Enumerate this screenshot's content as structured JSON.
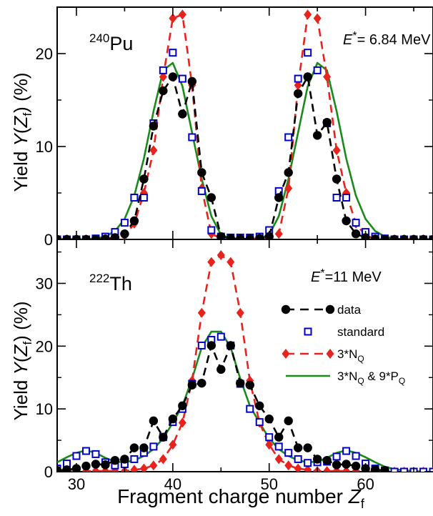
{
  "chart_data": [
    {
      "type": "line",
      "panel_label": {
        "mass": "240",
        "element": "Pu"
      },
      "energy": {
        "symbol": "E",
        "star": "*",
        "value_text": "= 6.84 MeV"
      },
      "ylabel": {
        "prefix": "Yield ",
        "sym": "Y",
        "paren_open": "(",
        "zsym": "Z",
        "zsub": "f",
        "paren_close": ") (%)"
      },
      "xlim": [
        28,
        67
      ],
      "ylim": [
        0,
        25
      ],
      "yticks": [
        0,
        10,
        20
      ],
      "series": [
        {
          "key": "data",
          "color": "#000000",
          "x": [
            28,
            29,
            30,
            31,
            32,
            33,
            34,
            35,
            36,
            37,
            38,
            39,
            40,
            41,
            42,
            43,
            44,
            45,
            46,
            47,
            48,
            49,
            50,
            51,
            52,
            53,
            54,
            55,
            56,
            57,
            58,
            59,
            60,
            61,
            62,
            63,
            64,
            65,
            66,
            67
          ],
          "y": [
            0,
            0,
            0,
            0,
            0,
            0.05,
            0.2,
            0.6,
            2.0,
            6.5,
            12.2,
            16.0,
            17.5,
            13.5,
            17.0,
            7.2,
            4.5,
            0.3,
            0.1,
            0.05,
            0.05,
            0.1,
            0.3,
            4.5,
            7.2,
            15.7,
            17.5,
            11.2,
            12.6,
            6.5,
            2.0,
            0.6,
            0.2,
            0.05,
            0,
            0,
            0,
            0,
            0,
            0
          ]
        },
        {
          "key": "standard",
          "color": "#0000cc",
          "x": [
            28,
            29,
            30,
            31,
            32,
            33,
            34,
            35,
            36,
            37,
            38,
            39,
            40,
            41,
            42,
            43,
            44,
            45,
            46,
            47,
            48,
            49,
            50,
            51,
            52,
            53,
            54,
            55,
            56,
            57,
            58,
            59,
            60,
            61,
            62,
            63,
            64,
            65,
            66,
            67
          ],
          "y": [
            0,
            0,
            0,
            0,
            0.1,
            0.3,
            0.8,
            1.8,
            4.5,
            4.5,
            12.5,
            18.2,
            20.1,
            17.3,
            11.0,
            5.2,
            1.0,
            0.3,
            0.2,
            0.2,
            0.2,
            0.3,
            1.0,
            5.2,
            11.0,
            17.3,
            20.1,
            18.2,
            12.5,
            4.5,
            4.5,
            1.8,
            0.8,
            0.3,
            0.1,
            0,
            0,
            0,
            0,
            0
          ]
        },
        {
          "key": "3*N_Q",
          "color": "#e8231e",
          "x": [
            28,
            29,
            30,
            31,
            32,
            33,
            34,
            35,
            36,
            37,
            38,
            39,
            40,
            41,
            42,
            43,
            44,
            45,
            46,
            47,
            48,
            49,
            50,
            51,
            52,
            53,
            54,
            55,
            56,
            57,
            58,
            59,
            60,
            61,
            62,
            63,
            64,
            65,
            66,
            67
          ],
          "y": [
            0,
            0,
            0,
            0,
            0,
            0,
            0.1,
            0.4,
            1.7,
            5.0,
            9.6,
            17.5,
            23.8,
            24.2,
            16.6,
            5.5,
            0.6,
            0.1,
            0,
            0,
            0,
            0,
            0.1,
            0.6,
            5.5,
            16.6,
            24.2,
            23.8,
            17.5,
            9.6,
            5.0,
            1.7,
            0.4,
            0.1,
            0,
            0,
            0,
            0,
            0,
            0
          ]
        },
        {
          "key": "3*N_Q & 9*P_Q",
          "color": "#1a8a1a",
          "x": [
            28,
            29,
            30,
            31,
            32,
            33,
            34,
            35,
            36,
            37,
            38,
            39,
            40,
            41,
            42,
            43,
            44,
            45,
            46,
            47,
            48,
            49,
            50,
            51,
            52,
            53,
            54,
            55,
            56,
            57,
            58,
            59,
            60,
            61,
            62,
            63,
            64,
            65,
            66,
            67
          ],
          "y": [
            0,
            0,
            0,
            0,
            0.1,
            0.3,
            0.9,
            2.2,
            4.7,
            8.7,
            13.8,
            18.2,
            19.0,
            16.5,
            11.5,
            6.5,
            2.5,
            0.5,
            0.1,
            0.05,
            0.05,
            0.1,
            0.5,
            2.5,
            6.5,
            11.5,
            16.5,
            19.0,
            18.2,
            13.8,
            8.7,
            4.7,
            2.2,
            0.9,
            0.3,
            0.1,
            0,
            0,
            0,
            0
          ]
        }
      ]
    },
    {
      "type": "line",
      "panel_label": {
        "mass": "222",
        "element": "Th"
      },
      "energy": {
        "symbol": "E",
        "star": "*",
        "value_text": "=11 MeV"
      },
      "ylabel": {
        "prefix": "Yield ",
        "sym": "Y",
        "paren_open": "(",
        "zsym": "Z",
        "zsub": "f",
        "paren_close": ") (%)"
      },
      "xlabel": {
        "text": "Fragment charge number ",
        "sym": "Z",
        "sub": "f"
      },
      "xlim": [
        28,
        67
      ],
      "ylim": [
        0,
        37
      ],
      "xticks": [
        30,
        40,
        50,
        60
      ],
      "yticks": [
        0,
        10,
        20,
        30
      ],
      "legend": {
        "position": "right",
        "entries": [
          {
            "key": "data",
            "label": "data",
            "sub": "",
            "tail": ""
          },
          {
            "key": "standard",
            "label": "standard",
            "sub": "",
            "tail": ""
          },
          {
            "key": "3*N_Q",
            "label": "3*N",
            "sub": "Q",
            "tail": ""
          },
          {
            "key": "3*N_Q & 9*P_Q",
            "label": "3*N",
            "sub": "Q",
            "tail": " & 9*P",
            "sub2": "Q"
          }
        ]
      },
      "series": [
        {
          "key": "data",
          "color": "#000000",
          "x": [
            28,
            29,
            30,
            31,
            32,
            33,
            34,
            35,
            36,
            37,
            38,
            39,
            40,
            41,
            42,
            43,
            44,
            45,
            46,
            47,
            48,
            49,
            50,
            51,
            52,
            53,
            54,
            55,
            56,
            57,
            58,
            59,
            60,
            61,
            62
          ],
          "y": [
            0.2,
            0.3,
            0.5,
            0.9,
            1.2,
            1.1,
            1.8,
            2.0,
            3.8,
            3.8,
            8.1,
            5.5,
            8.4,
            10.5,
            13.8,
            14.1,
            20.1,
            16.3,
            20.1,
            14.1,
            13.8,
            10.5,
            8.4,
            5.5,
            8.1,
            3.8,
            3.8,
            2.0,
            1.8,
            1.1,
            1.2,
            0.9,
            0.5,
            0.3,
            0.2
          ]
        },
        {
          "key": "standard",
          "color": "#0000cc",
          "x": [
            28,
            29,
            30,
            31,
            32,
            33,
            34,
            35,
            36,
            37,
            38,
            39,
            40,
            41,
            42,
            43,
            44,
            45,
            46,
            47,
            48,
            49,
            50,
            51,
            52,
            53,
            54,
            55,
            56,
            57,
            58,
            59,
            60,
            61,
            62,
            63,
            64,
            65,
            66,
            67
          ],
          "y": [
            0.5,
            1.3,
            2.5,
            3.3,
            2.8,
            1.5,
            1.0,
            1.2,
            2.0,
            3.0,
            4.0,
            5.5,
            7.9,
            10.0,
            14.0,
            20.1,
            21.0,
            21.5,
            20.1,
            14.0,
            10.0,
            7.9,
            5.5,
            4.0,
            3.0,
            2.0,
            1.4,
            1.5,
            1.6,
            2.4,
            3.3,
            2.5,
            1.3,
            0.5,
            0.2,
            0,
            0,
            0,
            0,
            0
          ]
        },
        {
          "key": "3*N_Q",
          "color": "#e8231e",
          "x": [
            28,
            29,
            30,
            31,
            32,
            33,
            34,
            35,
            36,
            37,
            38,
            39,
            40,
            41,
            42,
            43,
            44,
            45,
            46,
            47,
            48,
            49,
            50,
            51,
            52,
            53,
            54,
            55,
            56,
            57,
            58,
            59,
            60,
            61,
            62,
            63,
            64,
            65,
            66,
            67
          ],
          "y": [
            0,
            0,
            0.05,
            0.1,
            0.1,
            0.1,
            0.1,
            0.1,
            0.3,
            0.5,
            1.0,
            2.0,
            4.3,
            7.8,
            14.5,
            25.3,
            33.4,
            34.5,
            33.4,
            25.3,
            14.5,
            7.8,
            4.3,
            2.0,
            1.0,
            0.5,
            0.3,
            0.1,
            0.1,
            0.1,
            0.1,
            0.1,
            0.05,
            0,
            0,
            0,
            0,
            0,
            0,
            0
          ]
        },
        {
          "key": "3*N_Q & 9*P_Q",
          "color": "#1a8a1a",
          "x": [
            28,
            29,
            30,
            31,
            32,
            33,
            34,
            35,
            36,
            37,
            38,
            39,
            40,
            41,
            42,
            43,
            44,
            45,
            46,
            47,
            48,
            49,
            50,
            51,
            52,
            53,
            54,
            55,
            56,
            57,
            58,
            59,
            60,
            61,
            62,
            63,
            64,
            65,
            66,
            67
          ],
          "y": [
            1.5,
            2.3,
            3.0,
            3.4,
            3.0,
            2.2,
            1.6,
            1.5,
            1.8,
            2.5,
            3.6,
            5.3,
            7.8,
            10.5,
            14.8,
            19.8,
            22.3,
            22.3,
            19.8,
            14.8,
            10.5,
            7.8,
            5.3,
            3.6,
            2.5,
            1.8,
            1.5,
            1.6,
            2.2,
            3.0,
            3.4,
            3.0,
            2.3,
            1.5,
            0.8,
            0.4,
            0.2,
            0.1,
            0,
            0
          ]
        }
      ]
    }
  ]
}
